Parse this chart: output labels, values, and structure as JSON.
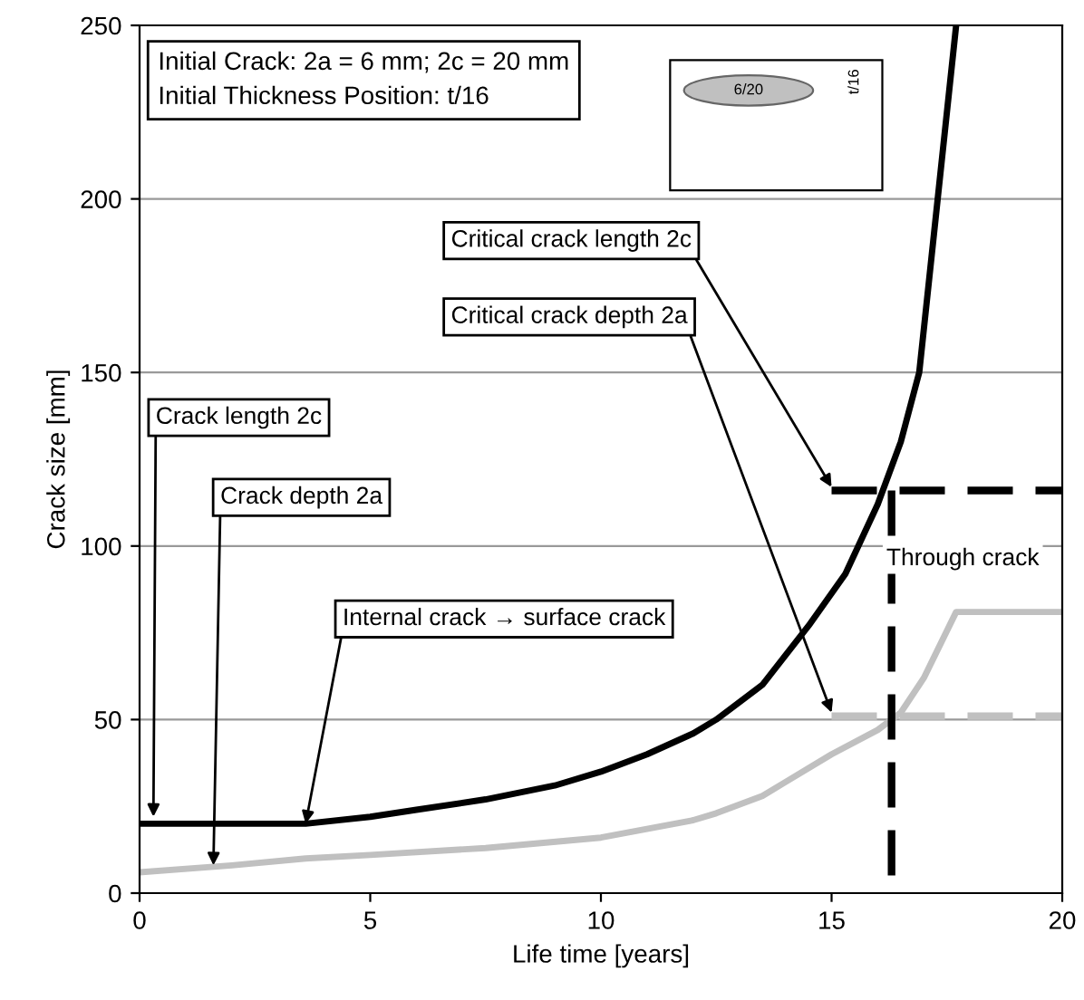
{
  "chart_data": {
    "type": "line",
    "xlabel": "Life time [years]",
    "ylabel": "Crack size [mm]",
    "xlim": [
      0,
      20
    ],
    "ylim": [
      0,
      250
    ],
    "xticks": [
      0,
      5,
      10,
      15,
      20
    ],
    "yticks": [
      0,
      50,
      100,
      150,
      200,
      250
    ],
    "grid": "y",
    "legend": false,
    "line_style": "solid",
    "marker": "none",
    "series": [
      {
        "color": "#000000",
        "x": [
          0,
          2,
          3.6,
          5,
          6,
          7.5,
          9,
          10,
          11,
          12,
          12.5,
          13.5,
          14.5,
          15.3,
          16,
          16.5,
          16.9,
          17.3,
          17.7
        ],
        "values": [
          20,
          20,
          20,
          22,
          24,
          27,
          31,
          35,
          40,
          46,
          50,
          60,
          77,
          92,
          112,
          130,
          150,
          200,
          250
        ]
      },
      {
        "color": "#c0c0c0",
        "x": [
          0,
          2,
          3.6,
          5,
          7.5,
          10,
          12,
          12.5,
          13.5,
          14,
          15,
          16,
          16.5,
          17,
          17.7,
          20
        ],
        "values": [
          6,
          8,
          10,
          11,
          13,
          16,
          21,
          23,
          28,
          32,
          40,
          47,
          52,
          62,
          81,
          81
        ]
      },
      {
        "color": "#000000",
        "line_style": "dashed",
        "x": [
          15,
          20
        ],
        "values": [
          116,
          116
        ]
      },
      {
        "color": "#c0c0c0",
        "line_style": "dashed",
        "x": [
          15,
          20
        ],
        "values": [
          51,
          51
        ]
      },
      {
        "color": "#000000",
        "line_style": "dashed",
        "x": [
          16.3,
          16.3
        ],
        "values": [
          116,
          0
        ]
      }
    ],
    "annotations": [
      "Initial Crack: 2a = 6 mm; 2c = 20 mm\nInitial Thickness Position: t/16",
      "6/20",
      "t/16",
      {
        "text": "Critical crack length 2c",
        "x": 15,
        "y": 117
      },
      {
        "text": "Critical crack depth 2a",
        "x": 15,
        "y": 52
      },
      {
        "text": "Crack length 2c",
        "x": 0.3,
        "y": 22
      },
      {
        "text": "Crack depth 2a",
        "x": 1.6,
        "y": 8
      },
      {
        "text": "Internal crack → surface crack",
        "x": 3.6,
        "y": 20
      },
      "Through crack"
    ]
  }
}
